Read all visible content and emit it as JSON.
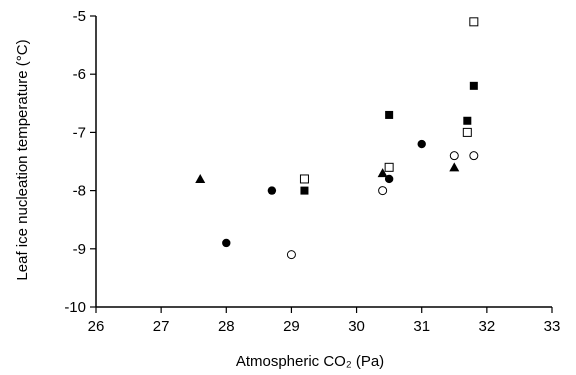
{
  "chart_data": {
    "type": "scatter",
    "xlabel": "Atmospheric CO₂ (Pa)",
    "ylabel": "Leaf ice nucleation temperature (°C)",
    "xlim": [
      26,
      33
    ],
    "ylim": [
      -10,
      -5
    ],
    "x_ticks": [
      26,
      27,
      28,
      29,
      30,
      31,
      32,
      33
    ],
    "y_ticks": [
      -10,
      -9,
      -8,
      -7,
      -6,
      -5
    ],
    "grid": false,
    "legend": "none",
    "series": [
      {
        "marker": "filled-circle",
        "color": "#000000",
        "points": [
          [
            28.0,
            -8.9
          ],
          [
            28.7,
            -8.0
          ],
          [
            30.5,
            -7.8
          ],
          [
            31.0,
            -7.2
          ]
        ]
      },
      {
        "marker": "open-circle",
        "color": "#000000",
        "points": [
          [
            29.0,
            -9.1
          ],
          [
            30.4,
            -8.0
          ],
          [
            31.5,
            -7.4
          ],
          [
            31.8,
            -7.4
          ]
        ]
      },
      {
        "marker": "filled-square",
        "color": "#000000",
        "points": [
          [
            29.2,
            -8.0
          ],
          [
            30.5,
            -6.7
          ],
          [
            31.7,
            -6.8
          ],
          [
            31.8,
            -6.2
          ]
        ]
      },
      {
        "marker": "open-square",
        "color": "#000000",
        "points": [
          [
            29.2,
            -7.8
          ],
          [
            30.5,
            -7.6
          ],
          [
            31.7,
            -7.0
          ],
          [
            31.8,
            -5.1
          ]
        ]
      },
      {
        "marker": "filled-triangle",
        "color": "#000000",
        "points": [
          [
            27.6,
            -7.8
          ],
          [
            30.4,
            -7.7
          ],
          [
            31.5,
            -7.6
          ]
        ]
      }
    ]
  }
}
